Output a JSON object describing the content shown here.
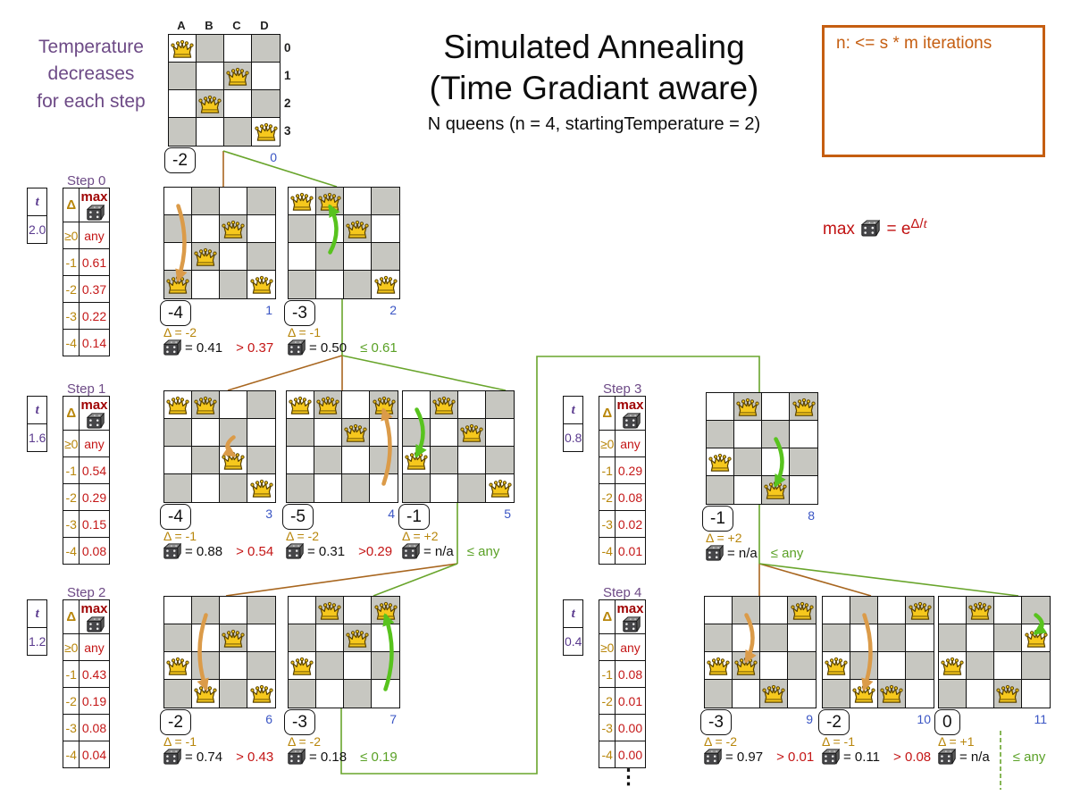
{
  "sidenote": {
    "lines": [
      "Temperature",
      "decreases",
      "for each step"
    ]
  },
  "title": {
    "line1": "Simulated Annealing",
    "line2": "(Time Gradiant aware)",
    "subtitle": "N queens (n = 4, startingTemperature = 2)"
  },
  "iteration_note": "n: <= s * m iterations",
  "formula": {
    "lhs": "max",
    "rhs": "= e",
    "exp_num": "Δ/",
    "exp_var": "t"
  },
  "board_axis": {
    "columns": [
      "A",
      "B",
      "C",
      "D"
    ],
    "rows": [
      "0",
      "1",
      "2",
      "3"
    ]
  },
  "steps": [
    {
      "label": "Step 0",
      "t_header": "t",
      "t_value": "2.0",
      "delta_header": "Δ",
      "max_header": "max",
      "rows": [
        {
          "delta": "≥0",
          "max": "any"
        },
        {
          "delta": "-1",
          "max": "0.61"
        },
        {
          "delta": "-2",
          "max": "0.37"
        },
        {
          "delta": "-3",
          "max": "0.22"
        },
        {
          "delta": "-4",
          "max": "0.14"
        }
      ]
    },
    {
      "label": "Step 1",
      "t_header": "t",
      "t_value": "1.6",
      "delta_header": "Δ",
      "max_header": "max",
      "rows": [
        {
          "delta": "≥0",
          "max": "any"
        },
        {
          "delta": "-1",
          "max": "0.54"
        },
        {
          "delta": "-2",
          "max": "0.29"
        },
        {
          "delta": "-3",
          "max": "0.15"
        },
        {
          "delta": "-4",
          "max": "0.08"
        }
      ]
    },
    {
      "label": "Step 2",
      "t_header": "t",
      "t_value": "1.2",
      "delta_header": "Δ",
      "max_header": "max",
      "rows": [
        {
          "delta": "≥0",
          "max": "any"
        },
        {
          "delta": "-1",
          "max": "0.43"
        },
        {
          "delta": "-2",
          "max": "0.19"
        },
        {
          "delta": "-3",
          "max": "0.08"
        },
        {
          "delta": "-4",
          "max": "0.04"
        }
      ]
    },
    {
      "label": "Step 3",
      "t_header": "t",
      "t_value": "0.8",
      "delta_header": "Δ",
      "max_header": "max",
      "rows": [
        {
          "delta": "≥0",
          "max": "any"
        },
        {
          "delta": "-1",
          "max": "0.29"
        },
        {
          "delta": "-2",
          "max": "0.08"
        },
        {
          "delta": "-3",
          "max": "0.02"
        },
        {
          "delta": "-4",
          "max": "0.01"
        }
      ]
    },
    {
      "label": "Step 4",
      "t_header": "t",
      "t_value": "0.4",
      "delta_header": "Δ",
      "max_header": "max",
      "rows": [
        {
          "delta": "≥0",
          "max": "any"
        },
        {
          "delta": "-1",
          "max": "0.08"
        },
        {
          "delta": "-2",
          "max": "0.01"
        },
        {
          "delta": "-3",
          "max": "0.00"
        },
        {
          "delta": "-4",
          "max": "0.00"
        }
      ]
    }
  ],
  "boards": [
    {
      "id": 0,
      "index": "0",
      "score": "-2",
      "queens": [
        [
          0,
          0
        ],
        [
          2,
          1
        ],
        [
          1,
          2
        ],
        [
          3,
          3
        ]
      ]
    },
    {
      "id": 1,
      "index": "1",
      "score": "-4",
      "queens": [
        [
          2,
          1
        ],
        [
          1,
          2
        ],
        [
          0,
          3
        ],
        [
          3,
          3
        ]
      ],
      "arrow": {
        "col": 0,
        "from_row": 0,
        "to_row": 3,
        "color": "orange",
        "bow": 1
      },
      "delta": "Δ = -2",
      "dice": "= 0.41",
      "compare": "> 0.37",
      "compare_type": "reject"
    },
    {
      "id": 2,
      "index": "2",
      "score": "-3",
      "queens": [
        [
          0,
          0
        ],
        [
          1,
          0
        ],
        [
          2,
          1
        ],
        [
          3,
          3
        ]
      ],
      "arrow": {
        "col": 1,
        "from_row": 2,
        "to_row": 0,
        "color": "green",
        "bow": 1
      },
      "delta": "Δ = -1",
      "dice": "= 0.50",
      "compare": "≤ 0.61",
      "compare_type": "accept"
    },
    {
      "id": 3,
      "index": "3",
      "score": "-4",
      "queens": [
        [
          0,
          0
        ],
        [
          1,
          0
        ],
        [
          2,
          2
        ],
        [
          3,
          3
        ]
      ],
      "arrow": {
        "col": 2,
        "from_row": 1,
        "to_row": 2,
        "color": "orange",
        "bow": -1
      },
      "delta": "Δ = -1",
      "dice": "= 0.88",
      "compare": "> 0.54",
      "compare_type": "reject"
    },
    {
      "id": 4,
      "index": "4",
      "score": "-5",
      "queens": [
        [
          0,
          0
        ],
        [
          1,
          0
        ],
        [
          3,
          0
        ],
        [
          2,
          1
        ]
      ],
      "arrow": {
        "col": 3,
        "from_row": 3,
        "to_row": 0,
        "color": "orange",
        "bow": 1
      },
      "delta": "Δ = -2",
      "dice": "= 0.31",
      "compare": ">0.29",
      "compare_type": "reject"
    },
    {
      "id": 5,
      "index": "5",
      "score": "-1",
      "queens": [
        [
          1,
          0
        ],
        [
          2,
          1
        ],
        [
          0,
          2
        ],
        [
          3,
          3
        ]
      ],
      "arrow": {
        "col": 0,
        "from_row": 0,
        "to_row": 2,
        "color": "green",
        "bow": 1
      },
      "delta": "Δ = +2",
      "dice": "= n/a",
      "compare": "≤ any",
      "compare_type": "accept"
    },
    {
      "id": 6,
      "index": "6",
      "score": "-2",
      "queens": [
        [
          2,
          1
        ],
        [
          0,
          2
        ],
        [
          1,
          3
        ],
        [
          3,
          3
        ]
      ],
      "arrow": {
        "col": 1,
        "from_row": 0,
        "to_row": 3,
        "color": "orange",
        "bow": -1
      },
      "delta": "Δ = -1",
      "dice": "= 0.74",
      "compare": "> 0.43",
      "compare_type": "reject"
    },
    {
      "id": 7,
      "index": "7",
      "score": "-3",
      "queens": [
        [
          1,
          0
        ],
        [
          3,
          0
        ],
        [
          2,
          1
        ],
        [
          0,
          2
        ]
      ],
      "arrow": {
        "col": 3,
        "from_row": 3,
        "to_row": 0,
        "color": "green",
        "bow": 1
      },
      "delta": "Δ = -2",
      "dice": "= 0.18",
      "compare": "≤ 0.19",
      "compare_type": "accept"
    },
    {
      "id": 8,
      "index": "8",
      "score": "-1",
      "queens": [
        [
          1,
          0
        ],
        [
          3,
          0
        ],
        [
          0,
          2
        ],
        [
          2,
          3
        ]
      ],
      "arrow": {
        "col": 2,
        "from_row": 1,
        "to_row": 3,
        "color": "green",
        "bow": 1
      },
      "delta": "Δ = +2",
      "dice": "= n/a",
      "compare": "≤ any",
      "compare_type": "accept"
    },
    {
      "id": 9,
      "index": "9",
      "score": "-3",
      "queens": [
        [
          3,
          0
        ],
        [
          0,
          2
        ],
        [
          1,
          2
        ],
        [
          2,
          3
        ]
      ],
      "arrow": {
        "col": 1,
        "from_row": 0,
        "to_row": 2,
        "color": "orange",
        "bow": 1
      },
      "delta": "Δ = -2",
      "dice": "= 0.97",
      "compare": "> 0.01",
      "compare_type": "reject"
    },
    {
      "id": 10,
      "index": "10",
      "score": "-2",
      "queens": [
        [
          3,
          0
        ],
        [
          0,
          2
        ],
        [
          1,
          3
        ],
        [
          2,
          3
        ]
      ],
      "arrow": {
        "col": 1,
        "from_row": 0,
        "to_row": 3,
        "color": "orange",
        "bow": 1
      },
      "delta": "Δ = -1",
      "dice": "= 0.11",
      "compare": "> 0.08",
      "compare_type": "reject"
    },
    {
      "id": 11,
      "index": "11",
      "score": "0",
      "queens": [
        [
          1,
          0
        ],
        [
          3,
          1
        ],
        [
          0,
          2
        ],
        [
          2,
          3
        ]
      ],
      "arrow": {
        "col": 3,
        "from_row": 0,
        "to_row": 1,
        "color": "green",
        "bow": 1
      },
      "delta": "Δ = +1",
      "dice": "= n/a",
      "compare": "≤ any",
      "compare_type": "accept"
    }
  ],
  "ellipsis": "⋮",
  "colors": {
    "purple": "#6d4a86",
    "orange_text": "#c55e11",
    "delta_gold": "#b8860b",
    "max_red": "#c41616",
    "dark_red": "#a00505",
    "accept_green": "#5aa126",
    "edge_green": "#69a52c",
    "edge_orange": "#a8661f",
    "arrow_green": "#58c31e",
    "arrow_orange": "#db9b49",
    "index_blue": "#3a55c4",
    "board_gray": "#c7c7c1"
  }
}
